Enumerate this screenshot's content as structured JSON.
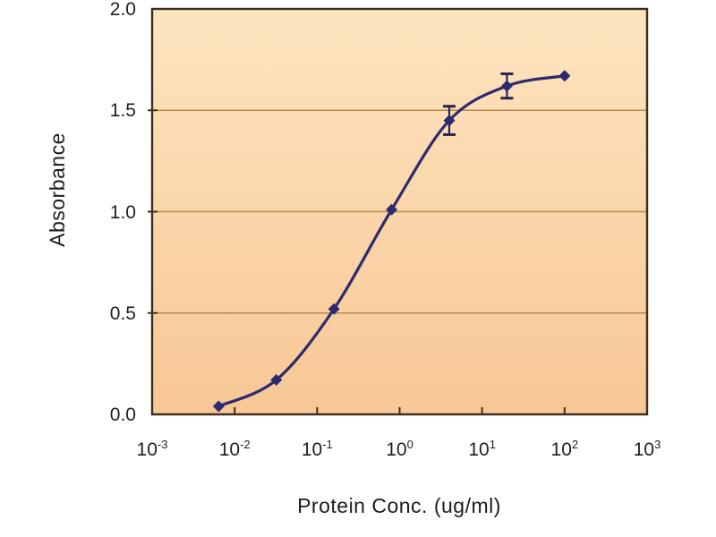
{
  "page": {
    "background": "#ffffff"
  },
  "chart_data": {
    "type": "line",
    "title": "",
    "xlabel": "Protein Conc. (ug/ml)",
    "ylabel": "Absorbance",
    "x_scale": "log",
    "xlim_exponents": [
      -3,
      3
    ],
    "ylim": [
      0,
      2
    ],
    "x_tick_exponents": [
      -3,
      -2,
      -1,
      0,
      1,
      2,
      3
    ],
    "y_ticks": [
      "0.0",
      "0.5",
      "1.0",
      "1.5",
      "2.0"
    ],
    "grid_y_values": [
      0.5,
      1.0,
      1.5
    ],
    "grid": "horizontal-only",
    "legend": "none",
    "series": [
      {
        "name": "standard-curve",
        "x": [
          0.0064,
          0.032,
          0.16,
          0.8,
          4,
          20,
          100
        ],
        "y": [
          0.04,
          0.17,
          0.52,
          1.01,
          1.45,
          1.62,
          1.67
        ],
        "y_err": [
          0,
          0,
          0,
          0,
          0.07,
          0.06,
          0
        ],
        "marker": "diamond",
        "color": "#2e2a6e"
      }
    ],
    "colors": {
      "plot_bg_top": "#fde5c0",
      "plot_bg_bottom": "#f8c795",
      "gridline": "#b9864e",
      "border": "#3b2f1f",
      "line": "#2e2a6e",
      "error_bar": "#28244f",
      "tick_text": "#1f1f1f"
    }
  }
}
